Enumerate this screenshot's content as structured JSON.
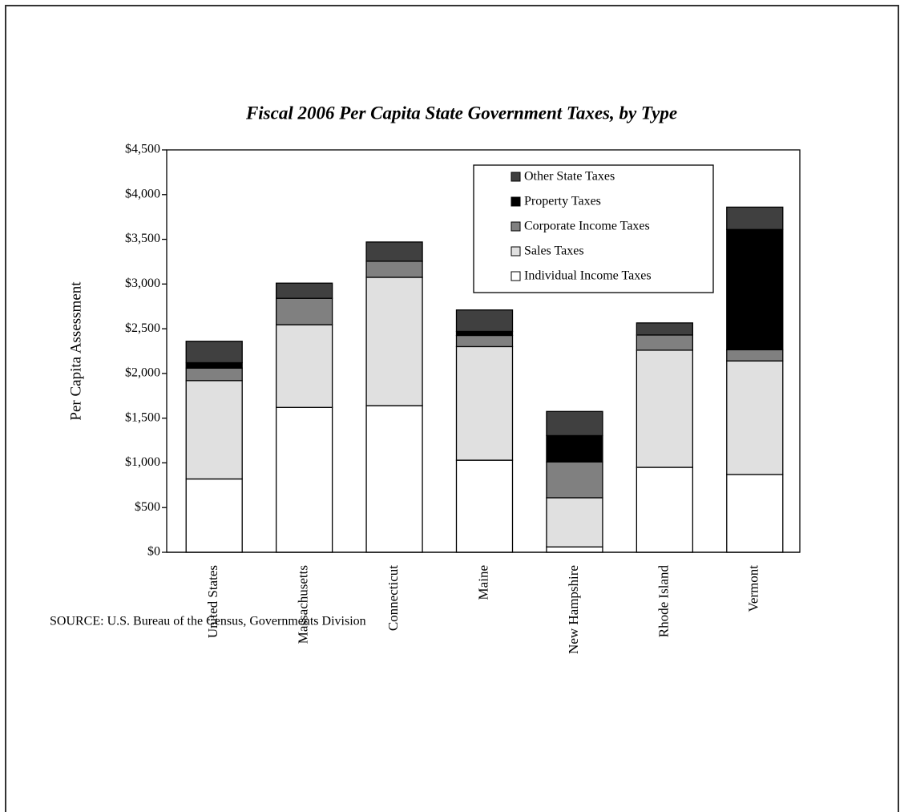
{
  "chart_data": {
    "type": "stacked_bar",
    "title": "Fiscal 2006 Per Capita State Government Taxes, by Type",
    "y_label": "Per Capita Assessment",
    "source": "SOURCE:  U.S. Bureau of the Census, Governments Division",
    "categories": [
      "United States",
      "Massachusetts",
      "Connecticut",
      "Maine",
      "New Hampshire",
      "Rhode Island",
      "Vermont"
    ],
    "series": [
      {
        "name": "Individual Income Taxes",
        "color": "#ffffff",
        "values": [
          820,
          1620,
          1640,
          1030,
          60,
          950,
          870
        ]
      },
      {
        "name": "Sales Taxes",
        "color": "#e0e0e0",
        "values": [
          1100,
          925,
          1435,
          1270,
          550,
          1310,
          1270
        ]
      },
      {
        "name": "Corporate Income Taxes",
        "color": "#808080",
        "values": [
          140,
          295,
          180,
          125,
          400,
          170,
          125
        ]
      },
      {
        "name": "Property Taxes",
        "color": "#000000",
        "values": [
          60,
          0,
          0,
          45,
          295,
          0,
          1345
        ]
      },
      {
        "name": "Other State Taxes",
        "color": "#404040",
        "values": [
          240,
          170,
          215,
          240,
          270,
          135,
          250
        ]
      }
    ],
    "ylim": [
      0,
      4500
    ],
    "yticks": [
      {
        "value": 0,
        "label": "$0"
      },
      {
        "value": 500,
        "label": "$500"
      },
      {
        "value": 1000,
        "label": "$1,000"
      },
      {
        "value": 1500,
        "label": "$1,500"
      },
      {
        "value": 2000,
        "label": "$2,000"
      },
      {
        "value": 2500,
        "label": "$2,500"
      },
      {
        "value": 3000,
        "label": "$3,000"
      },
      {
        "value": 3500,
        "label": "$3,500"
      },
      {
        "value": 4000,
        "label": "$4,000"
      },
      {
        "value": 4500,
        "label": "$4,500"
      }
    ],
    "legend": "upper right",
    "legend_reversed": true
  }
}
